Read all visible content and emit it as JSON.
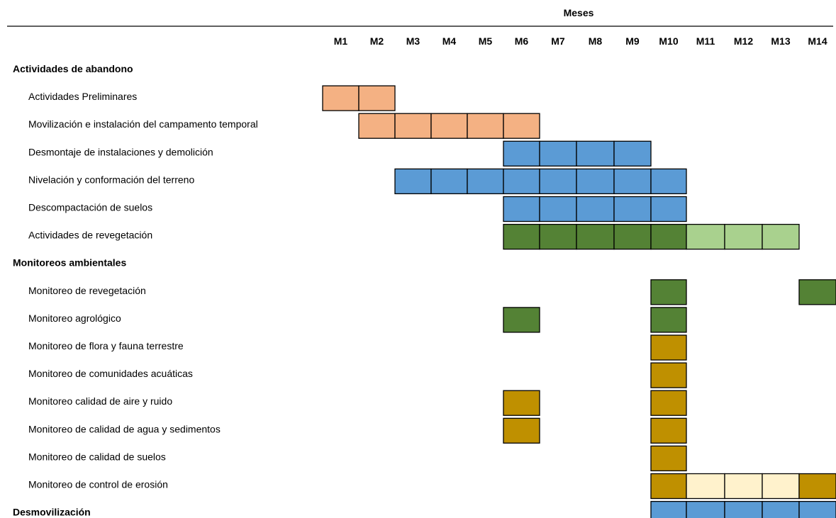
{
  "chart_data": {
    "type": "gantt",
    "group_header": "Meses",
    "months": [
      "M1",
      "M2",
      "M3",
      "M4",
      "M5",
      "M6",
      "M7",
      "M8",
      "M9",
      "M10",
      "M11",
      "M12",
      "M13",
      "M14"
    ],
    "colors": {
      "salmon": "#F4B183",
      "blue": "#5B9BD5",
      "dark_green": "#548235",
      "light_green": "#A9D18E",
      "gold": "#BF9000",
      "cream": "#FFF2CC"
    },
    "rows": [
      {
        "label": "Actividades de abandono",
        "section": true,
        "cells": []
      },
      {
        "label": "Actividades Preliminares",
        "section": false,
        "cells": [
          {
            "m": 1,
            "c": "salmon"
          },
          {
            "m": 2,
            "c": "salmon"
          }
        ]
      },
      {
        "label": "Movilización e instalación del campamento temporal",
        "section": false,
        "cells": [
          {
            "m": 2,
            "c": "salmon"
          },
          {
            "m": 3,
            "c": "salmon"
          },
          {
            "m": 4,
            "c": "salmon"
          },
          {
            "m": 5,
            "c": "salmon"
          },
          {
            "m": 6,
            "c": "salmon"
          }
        ]
      },
      {
        "label": "Desmontaje de instalaciones y demolición",
        "section": false,
        "cells": [
          {
            "m": 6,
            "c": "blue"
          },
          {
            "m": 7,
            "c": "blue"
          },
          {
            "m": 8,
            "c": "blue"
          },
          {
            "m": 9,
            "c": "blue"
          }
        ]
      },
      {
        "label": "Nivelación y conformación del terreno",
        "section": false,
        "cells": [
          {
            "m": 3,
            "c": "blue"
          },
          {
            "m": 4,
            "c": "blue"
          },
          {
            "m": 5,
            "c": "blue"
          },
          {
            "m": 6,
            "c": "blue"
          },
          {
            "m": 7,
            "c": "blue"
          },
          {
            "m": 8,
            "c": "blue"
          },
          {
            "m": 9,
            "c": "blue"
          },
          {
            "m": 10,
            "c": "blue"
          }
        ]
      },
      {
        "label": "Descompactación de suelos",
        "section": false,
        "cells": [
          {
            "m": 6,
            "c": "blue"
          },
          {
            "m": 7,
            "c": "blue"
          },
          {
            "m": 8,
            "c": "blue"
          },
          {
            "m": 9,
            "c": "blue"
          },
          {
            "m": 10,
            "c": "blue"
          }
        ]
      },
      {
        "label": "Actividades de revegetación",
        "section": false,
        "cells": [
          {
            "m": 6,
            "c": "dark_green"
          },
          {
            "m": 7,
            "c": "dark_green"
          },
          {
            "m": 8,
            "c": "dark_green"
          },
          {
            "m": 9,
            "c": "dark_green"
          },
          {
            "m": 10,
            "c": "dark_green"
          },
          {
            "m": 11,
            "c": "light_green"
          },
          {
            "m": 12,
            "c": "light_green"
          },
          {
            "m": 13,
            "c": "light_green"
          }
        ]
      },
      {
        "label": "Monitoreos ambientales",
        "section": true,
        "cells": []
      },
      {
        "label": "Monitoreo de revegetación",
        "section": false,
        "cells": [
          {
            "m": 10,
            "c": "dark_green"
          },
          {
            "m": 14,
            "c": "dark_green"
          }
        ]
      },
      {
        "label": "Monitoreo agrológico",
        "section": false,
        "cells": [
          {
            "m": 6,
            "c": "dark_green"
          },
          {
            "m": 10,
            "c": "dark_green"
          }
        ]
      },
      {
        "label": "Monitoreo de flora y fauna terrestre",
        "section": false,
        "cells": [
          {
            "m": 10,
            "c": "gold"
          }
        ]
      },
      {
        "label": "Monitoreo de comunidades acuáticas",
        "section": false,
        "cells": [
          {
            "m": 10,
            "c": "gold"
          }
        ]
      },
      {
        "label": "Monitoreo calidad de aire y ruido",
        "section": false,
        "cells": [
          {
            "m": 6,
            "c": "gold"
          },
          {
            "m": 10,
            "c": "gold"
          }
        ]
      },
      {
        "label": "Monitoreo de calidad de agua y sedimentos",
        "section": false,
        "cells": [
          {
            "m": 6,
            "c": "gold"
          },
          {
            "m": 10,
            "c": "gold"
          }
        ]
      },
      {
        "label": "Monitoreo de calidad de suelos",
        "section": false,
        "cells": [
          {
            "m": 10,
            "c": "gold"
          }
        ]
      },
      {
        "label": "Monitoreo de control de erosión",
        "section": false,
        "cells": [
          {
            "m": 10,
            "c": "gold"
          },
          {
            "m": 11,
            "c": "cream"
          },
          {
            "m": 12,
            "c": "cream"
          },
          {
            "m": 13,
            "c": "cream"
          },
          {
            "m": 14,
            "c": "gold"
          }
        ]
      },
      {
        "label": "Desmovilización",
        "section": true,
        "cells": [
          {
            "m": 10,
            "c": "blue"
          },
          {
            "m": 11,
            "c": "blue"
          },
          {
            "m": 12,
            "c": "blue"
          },
          {
            "m": 13,
            "c": "blue"
          },
          {
            "m": 14,
            "c": "blue"
          }
        ]
      }
    ]
  }
}
